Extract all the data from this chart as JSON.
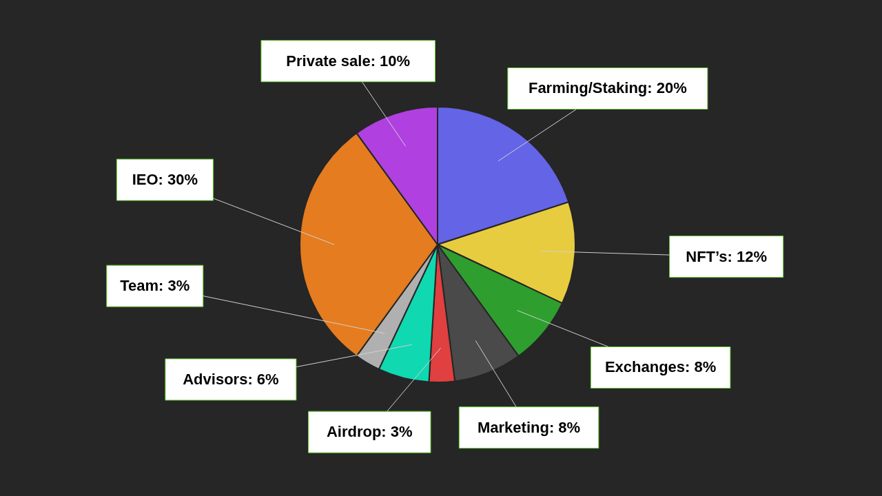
{
  "chart_data": {
    "type": "pie",
    "categories": [
      "Farming/Staking",
      "NFT’s",
      "Exchanges",
      "Marketing",
      "Airdrop",
      "Advisors",
      "Team",
      "IEO",
      "Private sale"
    ],
    "values": [
      20,
      12,
      8,
      8,
      3,
      6,
      3,
      30,
      10
    ],
    "colors": [
      "#6464e6",
      "#e8cc40",
      "#2e9e2e",
      "#4a4a4a",
      "#e04040",
      "#10d8b0",
      "#b0b0b0",
      "#e57c20",
      "#b040e0"
    ],
    "value_labels": [
      "20%",
      "12%",
      "8%",
      "8%",
      "3%",
      "6%",
      "3%",
      "30%",
      "10%"
    ]
  }
}
